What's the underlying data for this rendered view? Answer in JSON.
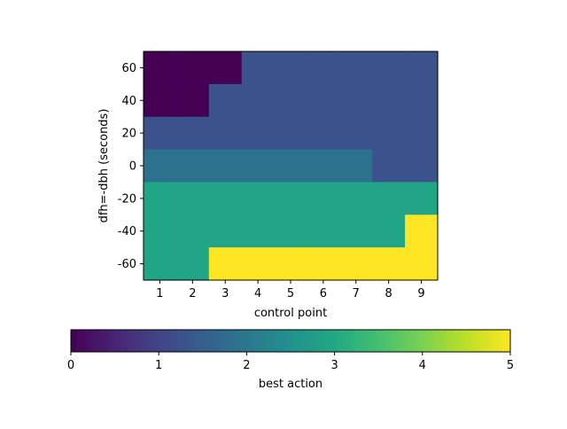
{
  "chart_data": {
    "type": "heatmap",
    "xlabel": "control point",
    "ylabel": "dfh=-dbh (seconds)",
    "x_categories": [
      "1",
      "2",
      "3",
      "4",
      "5",
      "6",
      "7",
      "8",
      "9"
    ],
    "y_ticks": [
      "60",
      "40",
      "20",
      "0",
      "-20",
      "-40",
      "-60"
    ],
    "y_tick_values": [
      60,
      40,
      20,
      0,
      -20,
      -40,
      -60
    ],
    "y_range": [
      -70,
      70
    ],
    "y_bins": [
      60,
      40,
      20,
      0,
      -20,
      -40,
      -60
    ],
    "grid": false,
    "colormap": "viridis",
    "values": [
      [
        0,
        0,
        0,
        1,
        1,
        1,
        1,
        1,
        1
      ],
      [
        0,
        0,
        1,
        1,
        1,
        1,
        1,
        1,
        1
      ],
      [
        1,
        1,
        1,
        1,
        1,
        1,
        1,
        1,
        1
      ],
      [
        2,
        2,
        2,
        2,
        2,
        2,
        2,
        1,
        1
      ],
      [
        3,
        3,
        3,
        3,
        3,
        3,
        3,
        3,
        3
      ],
      [
        3,
        3,
        3,
        3,
        3,
        3,
        3,
        3,
        5
      ],
      [
        3,
        3,
        5,
        5,
        5,
        5,
        5,
        5,
        5
      ]
    ],
    "colorbar": {
      "label": "best action",
      "range": [
        0,
        5
      ],
      "ticks": [
        "0",
        "1",
        "2",
        "3",
        "4",
        "5"
      ],
      "tick_values": [
        0,
        1,
        2,
        3,
        4,
        5
      ],
      "orientation": "horizontal"
    },
    "colors": {
      "0": "#440154",
      "1": "#3b528b",
      "2": "#2c728e",
      "3": "#21a685",
      "5": "#fde725"
    }
  }
}
